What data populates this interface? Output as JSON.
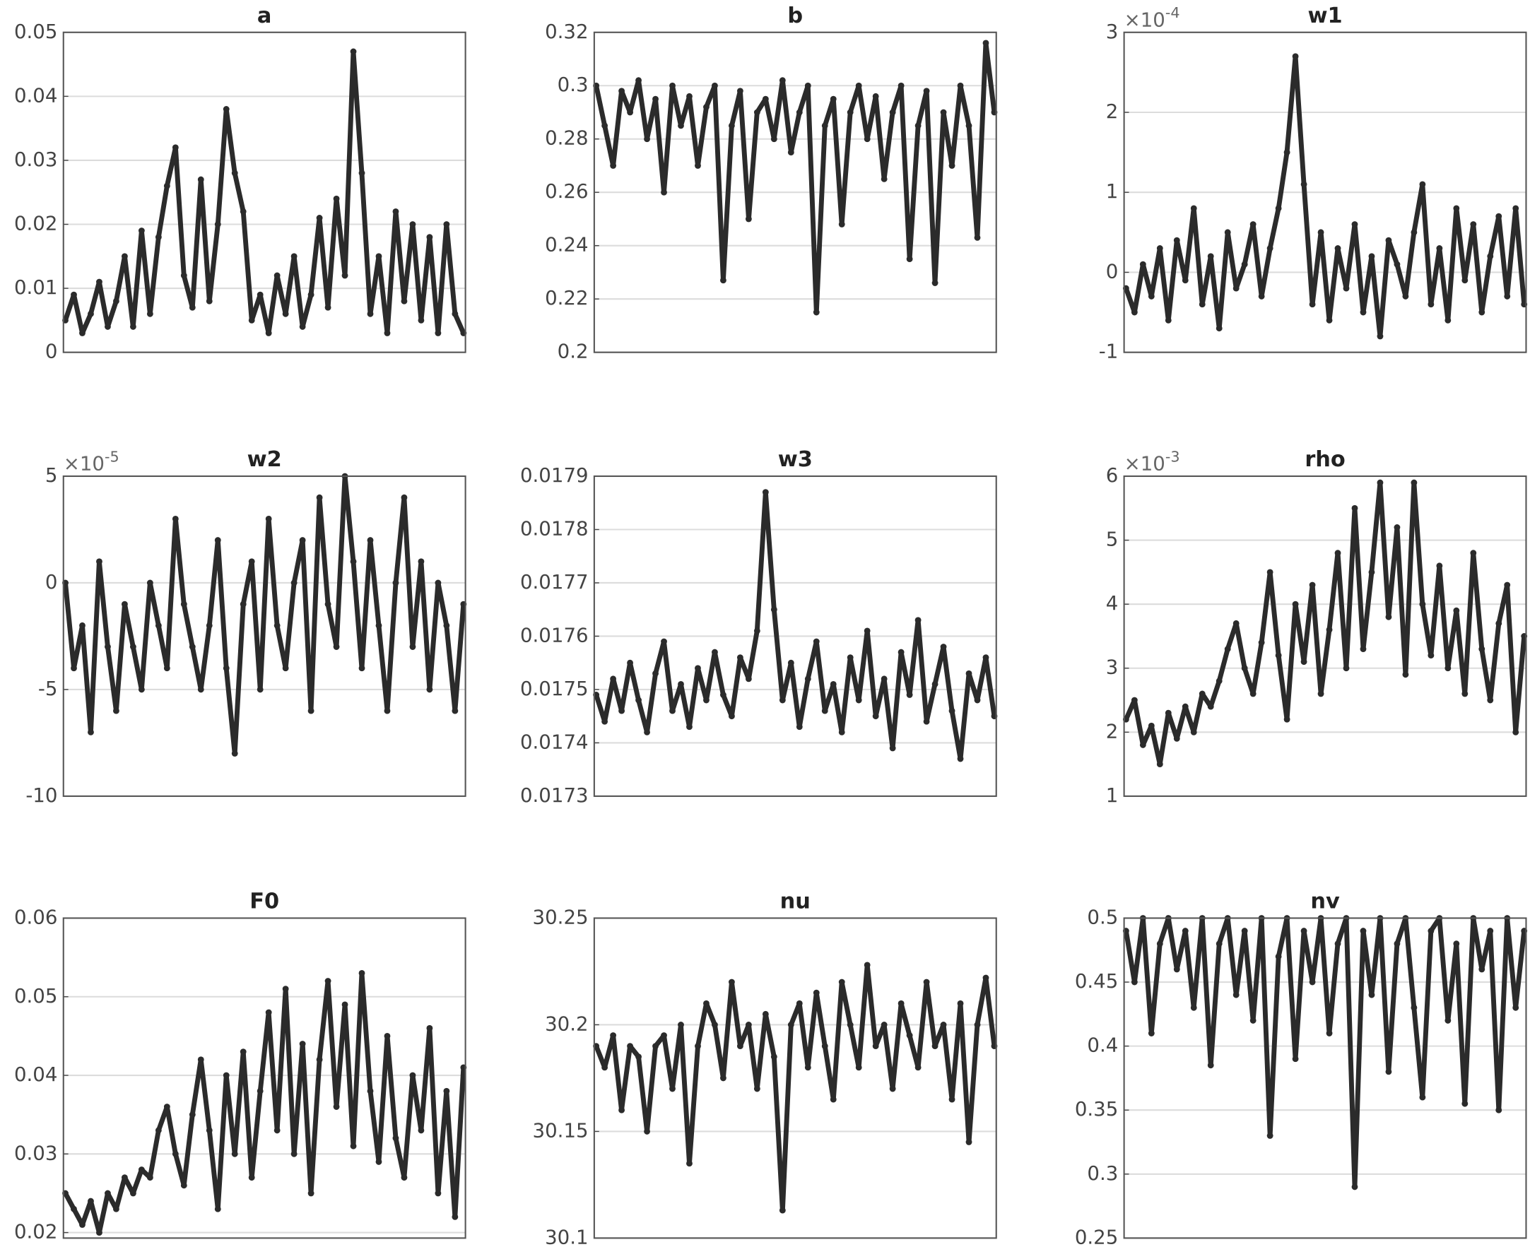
{
  "chart_data": [
    {
      "type": "line",
      "title": "a",
      "color": "#2b2b2b",
      "grid": true,
      "ylim": [
        0,
        0.05
      ],
      "yticks": [
        0,
        0.01,
        0.02,
        0.03,
        0.04,
        0.05
      ],
      "values": [
        0.005,
        0.009,
        0.003,
        0.006,
        0.011,
        0.004,
        0.008,
        0.015,
        0.004,
        0.019,
        0.006,
        0.018,
        0.026,
        0.032,
        0.012,
        0.007,
        0.027,
        0.008,
        0.02,
        0.038,
        0.028,
        0.022,
        0.005,
        0.009,
        0.003,
        0.012,
        0.006,
        0.015,
        0.004,
        0.009,
        0.021,
        0.007,
        0.024,
        0.012,
        0.047,
        0.028,
        0.006,
        0.015,
        0.003,
        0.022,
        0.008,
        0.02,
        0.005,
        0.018,
        0.003,
        0.02,
        0.006,
        0.003
      ]
    },
    {
      "type": "line",
      "title": "b",
      "color": "#2b2b2b",
      "grid": true,
      "ylim": [
        0.2,
        0.32
      ],
      "yticks": [
        0.2,
        0.22,
        0.24,
        0.26,
        0.28,
        0.3,
        0.32
      ],
      "values": [
        0.3,
        0.285,
        0.27,
        0.298,
        0.29,
        0.302,
        0.28,
        0.295,
        0.26,
        0.3,
        0.285,
        0.296,
        0.27,
        0.292,
        0.3,
        0.227,
        0.285,
        0.298,
        0.25,
        0.29,
        0.295,
        0.28,
        0.302,
        0.275,
        0.29,
        0.3,
        0.215,
        0.285,
        0.295,
        0.248,
        0.29,
        0.3,
        0.28,
        0.296,
        0.265,
        0.29,
        0.3,
        0.235,
        0.285,
        0.298,
        0.226,
        0.29,
        0.27,
        0.3,
        0.285,
        0.243,
        0.316,
        0.29
      ]
    },
    {
      "type": "line",
      "title": "w1",
      "color": "#2b2b2b",
      "grid": true,
      "ylim": [
        -1,
        3
      ],
      "yticks": [
        -1,
        0,
        1,
        2,
        3
      ],
      "y_multiplier": "×10",
      "y_exponent": "-4",
      "values": [
        -0.2,
        -0.5,
        0.1,
        -0.3,
        0.3,
        -0.6,
        0.4,
        -0.1,
        0.8,
        -0.4,
        0.2,
        -0.7,
        0.5,
        -0.2,
        0.1,
        0.6,
        -0.3,
        0.3,
        0.8,
        1.5,
        2.7,
        1.1,
        -0.4,
        0.5,
        -0.6,
        0.3,
        -0.2,
        0.6,
        -0.5,
        0.2,
        -0.8,
        0.4,
        0.1,
        -0.3,
        0.5,
        1.1,
        -0.4,
        0.3,
        -0.6,
        0.8,
        -0.1,
        0.6,
        -0.5,
        0.2,
        0.7,
        -0.3,
        0.8,
        -0.4
      ]
    },
    {
      "type": "line",
      "title": "w2",
      "color": "#2b2b2b",
      "grid": true,
      "ylim": [
        -10,
        5
      ],
      "yticks": [
        -10,
        -5,
        0,
        5
      ],
      "y_multiplier": "×10",
      "y_exponent": "-5",
      "values": [
        0,
        -4,
        -2,
        -7,
        1,
        -3,
        -6,
        -1,
        -3,
        -5,
        0,
        -2,
        -4,
        3,
        -1,
        -3,
        -5,
        -2,
        2,
        -4,
        -8,
        -1,
        1,
        -5,
        3,
        -2,
        -4,
        0,
        2,
        -6,
        4,
        -1,
        -3,
        5,
        1,
        -4,
        2,
        -2,
        -6,
        0,
        4,
        -3,
        1,
        -5,
        0,
        -2,
        -6,
        -1
      ]
    },
    {
      "type": "line",
      "title": "w3",
      "color": "#2b2b2b",
      "grid": true,
      "ylim": [
        0.0173,
        0.0179
      ],
      "yticks": [
        0.0173,
        0.0174,
        0.0175,
        0.0176,
        0.0177,
        0.0178,
        0.0179
      ],
      "values": [
        0.01749,
        0.01744,
        0.01752,
        0.01746,
        0.01755,
        0.01748,
        0.01742,
        0.01753,
        0.01759,
        0.01746,
        0.01751,
        0.01743,
        0.01754,
        0.01748,
        0.01757,
        0.01749,
        0.01745,
        0.01756,
        0.01752,
        0.01761,
        0.01787,
        0.01765,
        0.01748,
        0.01755,
        0.01743,
        0.01752,
        0.01759,
        0.01746,
        0.01751,
        0.01742,
        0.01756,
        0.01748,
        0.01761,
        0.01745,
        0.01752,
        0.01739,
        0.01757,
        0.01749,
        0.01763,
        0.01744,
        0.01751,
        0.01758,
        0.01746,
        0.01737,
        0.01753,
        0.01748,
        0.01756,
        0.01745
      ]
    },
    {
      "type": "line",
      "title": "rho",
      "color": "#2b2b2b",
      "grid": true,
      "ylim": [
        1,
        6
      ],
      "yticks": [
        1,
        2,
        3,
        4,
        5,
        6
      ],
      "y_multiplier": "×10",
      "y_exponent": "-3",
      "values": [
        2.2,
        2.5,
        1.8,
        2.1,
        1.5,
        2.3,
        1.9,
        2.4,
        2.0,
        2.6,
        2.4,
        2.8,
        3.3,
        3.7,
        3.0,
        2.6,
        3.4,
        4.5,
        3.2,
        2.2,
        4.0,
        3.1,
        4.3,
        2.6,
        3.6,
        4.8,
        3.0,
        5.5,
        3.3,
        4.5,
        5.9,
        3.8,
        5.2,
        2.9,
        5.9,
        4.0,
        3.2,
        4.6,
        3.0,
        3.9,
        2.6,
        4.8,
        3.3,
        2.5,
        3.7,
        4.3,
        2.0,
        3.5
      ]
    },
    {
      "type": "line",
      "title": "F0",
      "color": "#2b2b2b",
      "grid": true,
      "ylim": [
        0.0193,
        0.06
      ],
      "yticks": [
        0.02,
        0.03,
        0.04,
        0.05,
        0.06
      ],
      "values": [
        0.025,
        0.023,
        0.021,
        0.024,
        0.02,
        0.025,
        0.023,
        0.027,
        0.025,
        0.028,
        0.027,
        0.033,
        0.036,
        0.03,
        0.026,
        0.035,
        0.042,
        0.033,
        0.023,
        0.04,
        0.03,
        0.043,
        0.027,
        0.038,
        0.048,
        0.033,
        0.051,
        0.03,
        0.044,
        0.025,
        0.042,
        0.052,
        0.036,
        0.049,
        0.031,
        0.053,
        0.038,
        0.029,
        0.045,
        0.032,
        0.027,
        0.04,
        0.033,
        0.046,
        0.025,
        0.038,
        0.022,
        0.041
      ]
    },
    {
      "type": "line",
      "title": "nu",
      "color": "#2b2b2b",
      "grid": true,
      "ylim": [
        30.1,
        30.25
      ],
      "yticks": [
        30.1,
        30.15,
        30.2,
        30.25
      ],
      "values": [
        30.19,
        30.18,
        30.195,
        30.16,
        30.19,
        30.185,
        30.15,
        30.19,
        30.195,
        30.17,
        30.2,
        30.135,
        30.19,
        30.21,
        30.2,
        30.175,
        30.22,
        30.19,
        30.2,
        30.17,
        30.205,
        30.185,
        30.113,
        30.2,
        30.21,
        30.18,
        30.215,
        30.19,
        30.165,
        30.22,
        30.2,
        30.18,
        30.228,
        30.19,
        30.2,
        30.17,
        30.21,
        30.195,
        30.18,
        30.22,
        30.19,
        30.2,
        30.165,
        30.21,
        30.145,
        30.2,
        30.222,
        30.19
      ]
    },
    {
      "type": "line",
      "title": "nv",
      "color": "#2b2b2b",
      "grid": true,
      "ylim": [
        0.25,
        0.5
      ],
      "yticks": [
        0.25,
        0.3,
        0.35,
        0.4,
        0.45,
        0.5
      ],
      "values": [
        0.49,
        0.45,
        0.5,
        0.41,
        0.48,
        0.5,
        0.46,
        0.49,
        0.43,
        0.5,
        0.385,
        0.48,
        0.5,
        0.44,
        0.49,
        0.42,
        0.5,
        0.33,
        0.47,
        0.5,
        0.39,
        0.49,
        0.45,
        0.5,
        0.41,
        0.48,
        0.5,
        0.29,
        0.49,
        0.44,
        0.5,
        0.38,
        0.48,
        0.5,
        0.43,
        0.36,
        0.49,
        0.5,
        0.42,
        0.48,
        0.355,
        0.5,
        0.46,
        0.49,
        0.35,
        0.5,
        0.43,
        0.49
      ]
    }
  ]
}
